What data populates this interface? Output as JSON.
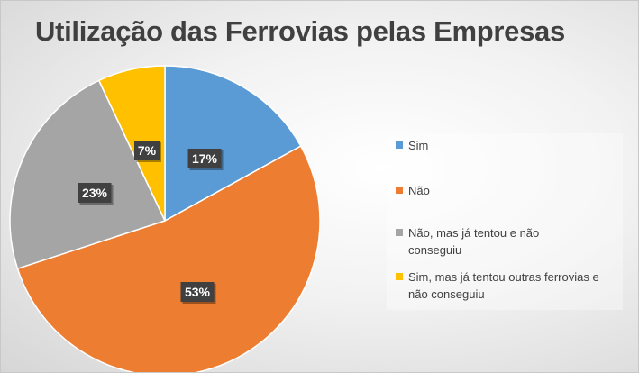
{
  "chart_data": {
    "type": "pie",
    "title": "Utilização das Ferrovias pelas Empresas",
    "start_angle_deg": 0,
    "direction": "clockwise",
    "legend_position": "right",
    "slices": [
      {
        "label": "Sim",
        "value": 17,
        "data_label": "17%",
        "color": "#5B9BD5"
      },
      {
        "label": "Não",
        "value": 53,
        "data_label": "53%",
        "color": "#ED7D31"
      },
      {
        "label": "Não, mas já tentou e não conseguiu",
        "value": 23,
        "data_label": "23%",
        "color": "#A5A5A5"
      },
      {
        "label": "Sim, mas já tentou outras ferrovias e não conseguiu",
        "value": 7,
        "data_label": "7%",
        "color": "#FFC000"
      }
    ]
  }
}
